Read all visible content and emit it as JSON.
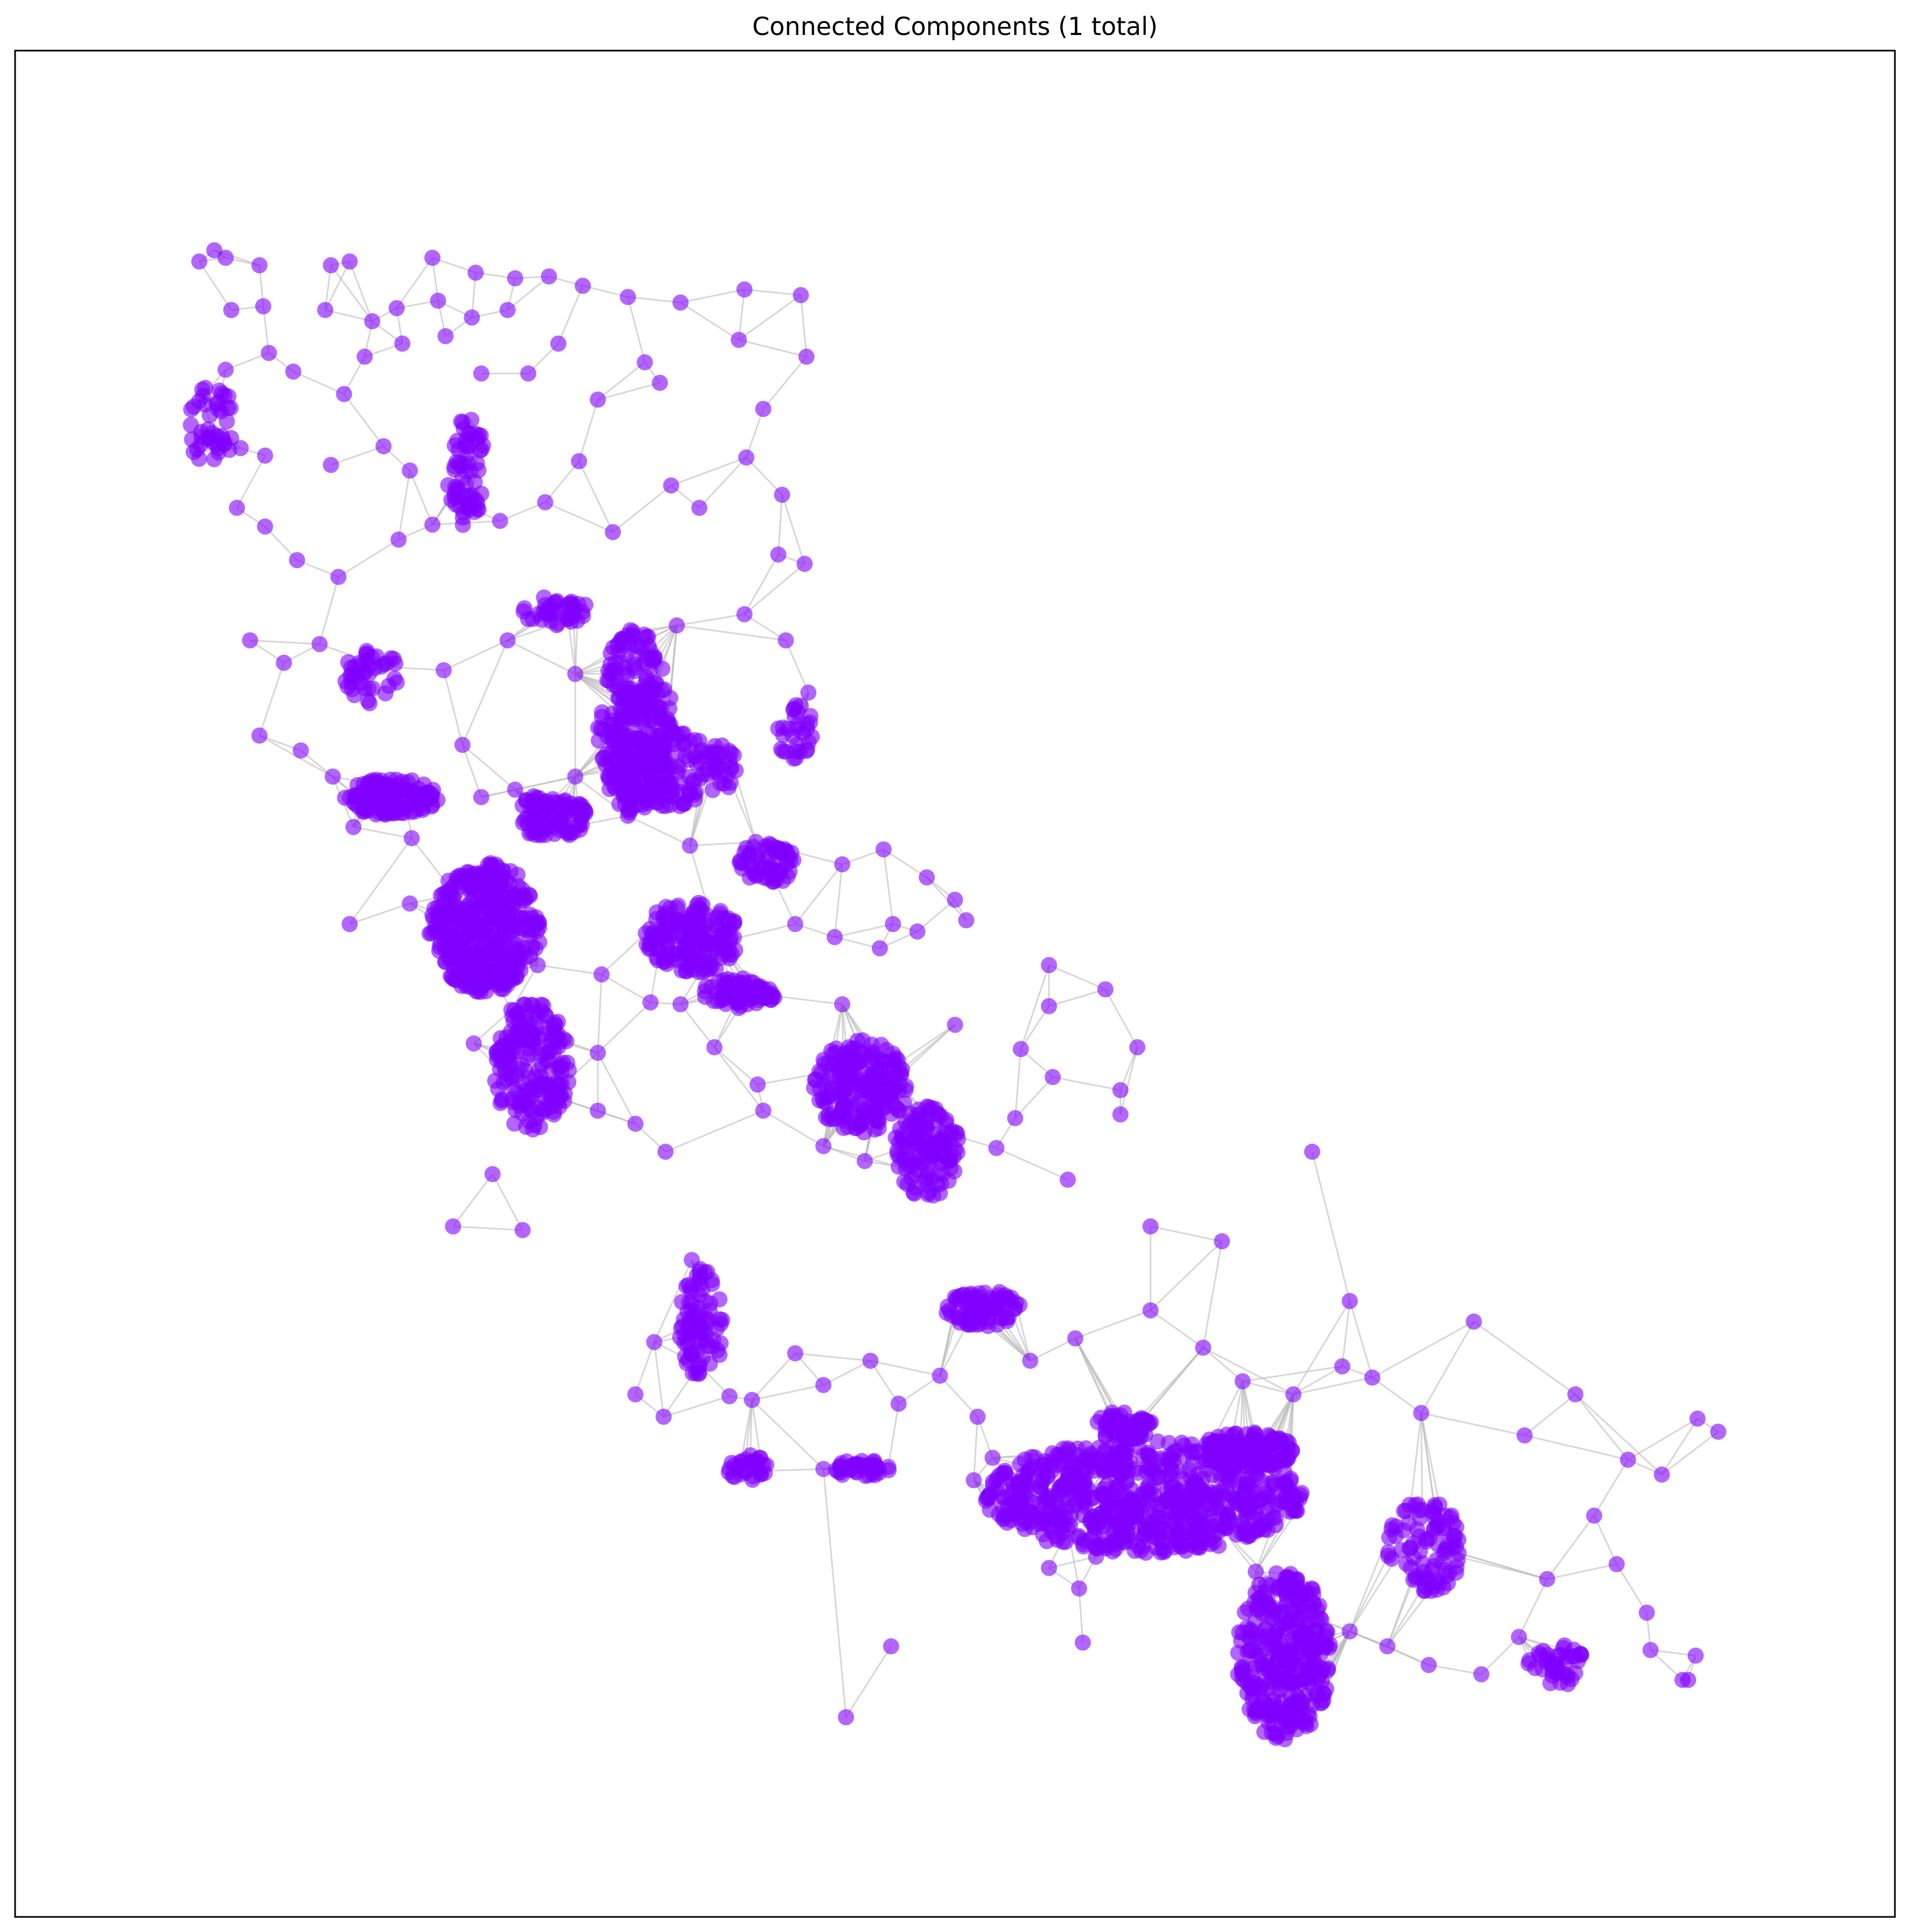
{
  "chart_data": {
    "type": "network",
    "title": "Connected Components (1 total)",
    "component_count": 1,
    "node_color": "#8000ff",
    "node_alpha": 0.6,
    "edge_color": "#bbbbbb",
    "axes_visible": false,
    "grid": false,
    "legend": "none",
    "xlim": [
      0,
      1
    ],
    "ylim": [
      0,
      1
    ],
    "nodes": [
      [
        0.098,
        0.887
      ],
      [
        0.106,
        0.893
      ],
      [
        0.112,
        0.889
      ],
      [
        0.13,
        0.885
      ],
      [
        0.168,
        0.885
      ],
      [
        0.178,
        0.887
      ],
      [
        0.222,
        0.889
      ],
      [
        0.245,
        0.881
      ],
      [
        0.266,
        0.878
      ],
      [
        0.284,
        0.879
      ],
      [
        0.302,
        0.874
      ],
      [
        0.326,
        0.868
      ],
      [
        0.354,
        0.865
      ],
      [
        0.388,
        0.872
      ],
      [
        0.418,
        0.869
      ],
      [
        0.115,
        0.861
      ],
      [
        0.132,
        0.863
      ],
      [
        0.165,
        0.861
      ],
      [
        0.19,
        0.855
      ],
      [
        0.203,
        0.862
      ],
      [
        0.225,
        0.866
      ],
      [
        0.243,
        0.857
      ],
      [
        0.262,
        0.861
      ],
      [
        0.289,
        0.843
      ],
      [
        0.335,
        0.833
      ],
      [
        0.385,
        0.845
      ],
      [
        0.421,
        0.836
      ],
      [
        0.112,
        0.829
      ],
      [
        0.135,
        0.838
      ],
      [
        0.148,
        0.828
      ],
      [
        0.175,
        0.816
      ],
      [
        0.186,
        0.836
      ],
      [
        0.206,
        0.843
      ],
      [
        0.229,
        0.847
      ],
      [
        0.248,
        0.827
      ],
      [
        0.273,
        0.827
      ],
      [
        0.31,
        0.813
      ],
      [
        0.343,
        0.822
      ],
      [
        0.398,
        0.808
      ],
      [
        0.1,
        0.815
      ],
      [
        0.108,
        0.808
      ],
      [
        0.105,
        0.795
      ],
      [
        0.095,
        0.785
      ],
      [
        0.12,
        0.787
      ],
      [
        0.133,
        0.783
      ],
      [
        0.168,
        0.778
      ],
      [
        0.196,
        0.788
      ],
      [
        0.21,
        0.775
      ],
      [
        0.246,
        0.792
      ],
      [
        0.3,
        0.78
      ],
      [
        0.349,
        0.767
      ],
      [
        0.389,
        0.782
      ],
      [
        0.408,
        0.762
      ],
      [
        0.118,
        0.755
      ],
      [
        0.133,
        0.745
      ],
      [
        0.15,
        0.727
      ],
      [
        0.172,
        0.718
      ],
      [
        0.204,
        0.738
      ],
      [
        0.222,
        0.746
      ],
      [
        0.258,
        0.748
      ],
      [
        0.282,
        0.758
      ],
      [
        0.318,
        0.742
      ],
      [
        0.364,
        0.755
      ],
      [
        0.406,
        0.73
      ],
      [
        0.42,
        0.725
      ],
      [
        0.125,
        0.684
      ],
      [
        0.143,
        0.672
      ],
      [
        0.162,
        0.682
      ],
      [
        0.195,
        0.67
      ],
      [
        0.228,
        0.668
      ],
      [
        0.262,
        0.684
      ],
      [
        0.298,
        0.666
      ],
      [
        0.352,
        0.692
      ],
      [
        0.388,
        0.698
      ],
      [
        0.41,
        0.684
      ],
      [
        0.422,
        0.656
      ],
      [
        0.13,
        0.633
      ],
      [
        0.152,
        0.625
      ],
      [
        0.169,
        0.611
      ],
      [
        0.18,
        0.584
      ],
      [
        0.207,
        0.604
      ],
      [
        0.238,
        0.628
      ],
      [
        0.266,
        0.604
      ],
      [
        0.298,
        0.611
      ],
      [
        0.326,
        0.59
      ],
      [
        0.359,
        0.574
      ],
      [
        0.394,
        0.576
      ],
      [
        0.44,
        0.564
      ],
      [
        0.462,
        0.572
      ],
      [
        0.178,
        0.532
      ],
      [
        0.21,
        0.543
      ],
      [
        0.234,
        0.548
      ],
      [
        0.25,
        0.512
      ],
      [
        0.278,
        0.51
      ],
      [
        0.312,
        0.505
      ],
      [
        0.338,
        0.49
      ],
      [
        0.374,
        0.522
      ],
      [
        0.415,
        0.532
      ],
      [
        0.436,
        0.525
      ],
      [
        0.46,
        0.519
      ],
      [
        0.48,
        0.528
      ],
      [
        0.506,
        0.534
      ],
      [
        0.485,
        0.557
      ],
      [
        0.5,
        0.545
      ],
      [
        0.55,
        0.51
      ],
      [
        0.58,
        0.497
      ],
      [
        0.597,
        0.466
      ],
      [
        0.588,
        0.443
      ],
      [
        0.55,
        0.488
      ],
      [
        0.535,
        0.465
      ],
      [
        0.532,
        0.428
      ],
      [
        0.552,
        0.45
      ],
      [
        0.588,
        0.43
      ],
      [
        0.285,
        0.44
      ],
      [
        0.31,
        0.432
      ],
      [
        0.33,
        0.425
      ],
      [
        0.346,
        0.41
      ],
      [
        0.398,
        0.432
      ],
      [
        0.43,
        0.413
      ],
      [
        0.452,
        0.405
      ],
      [
        0.47,
        0.402
      ],
      [
        0.495,
        0.42
      ],
      [
        0.522,
        0.412
      ],
      [
        0.56,
        0.395
      ],
      [
        0.604,
        0.37
      ],
      [
        0.642,
        0.362
      ],
      [
        0.69,
        0.41
      ],
      [
        0.71,
        0.33
      ],
      [
        0.776,
        0.319
      ],
      [
        0.83,
        0.28
      ],
      [
        0.803,
        0.258
      ],
      [
        0.858,
        0.245
      ],
      [
        0.876,
        0.237
      ],
      [
        0.895,
        0.267
      ],
      [
        0.906,
        0.26
      ],
      [
        0.36,
        0.352
      ],
      [
        0.34,
        0.308
      ],
      [
        0.364,
        0.296
      ],
      [
        0.38,
        0.279
      ],
      [
        0.415,
        0.302
      ],
      [
        0.43,
        0.285
      ],
      [
        0.455,
        0.298
      ],
      [
        0.47,
        0.275
      ],
      [
        0.492,
        0.29
      ],
      [
        0.512,
        0.268
      ],
      [
        0.54,
        0.298
      ],
      [
        0.564,
        0.31
      ],
      [
        0.604,
        0.325
      ],
      [
        0.632,
        0.305
      ],
      [
        0.653,
        0.287
      ],
      [
        0.68,
        0.28
      ],
      [
        0.706,
        0.295
      ],
      [
        0.722,
        0.289
      ],
      [
        0.748,
        0.27
      ],
      [
        0.51,
        0.234
      ],
      [
        0.52,
        0.246
      ],
      [
        0.56,
        0.208
      ],
      [
        0.575,
        0.193
      ],
      [
        0.61,
        0.201
      ],
      [
        0.64,
        0.21
      ],
      [
        0.66,
        0.185
      ],
      [
        0.685,
        0.163
      ],
      [
        0.71,
        0.153
      ],
      [
        0.73,
        0.145
      ],
      [
        0.752,
        0.135
      ],
      [
        0.78,
        0.13
      ],
      [
        0.8,
        0.15
      ],
      [
        0.815,
        0.181
      ],
      [
        0.84,
        0.215
      ],
      [
        0.852,
        0.189
      ],
      [
        0.87,
        0.143
      ],
      [
        0.89,
        0.127
      ],
      [
        0.887,
        0.127
      ],
      [
        0.894,
        0.14
      ],
      [
        0.868,
        0.163
      ],
      [
        0.55,
        0.187
      ],
      [
        0.566,
        0.176
      ],
      [
        0.568,
        0.147
      ],
      [
        0.466,
        0.145
      ],
      [
        0.442,
        0.107
      ],
      [
        0.43,
        0.24
      ],
      [
        0.392,
        0.277
      ],
      [
        0.33,
        0.28
      ],
      [
        0.345,
        0.268
      ],
      [
        0.27,
        0.368
      ],
      [
        0.233,
        0.37
      ],
      [
        0.254,
        0.398
      ],
      [
        0.5,
        0.478
      ],
      [
        0.467,
        0.532
      ],
      [
        0.44,
        0.489
      ],
      [
        0.395,
        0.446
      ],
      [
        0.372,
        0.466
      ],
      [
        0.354,
        0.489
      ],
      [
        0.31,
        0.463
      ],
      [
        0.264,
        0.486
      ],
      [
        0.244,
        0.468
      ],
      [
        0.242,
        0.533
      ],
      [
        0.211,
        0.578
      ],
      [
        0.248,
        0.6
      ]
    ],
    "dense_clusters": [
      {
        "cx": 0.24,
        "cy": 0.775,
        "rx": 0.01,
        "ry": 0.03,
        "n": 60
      },
      {
        "cx": 0.105,
        "cy": 0.8,
        "rx": 0.012,
        "ry": 0.025,
        "n": 40
      },
      {
        "cx": 0.285,
        "cy": 0.7,
        "rx": 0.02,
        "ry": 0.008,
        "n": 40
      },
      {
        "cx": 0.33,
        "cy": 0.64,
        "rx": 0.02,
        "ry": 0.05,
        "n": 260
      },
      {
        "cx": 0.35,
        "cy": 0.615,
        "rx": 0.035,
        "ry": 0.02,
        "n": 150
      },
      {
        "cx": 0.2,
        "cy": 0.6,
        "rx": 0.025,
        "ry": 0.01,
        "n": 120
      },
      {
        "cx": 0.25,
        "cy": 0.53,
        "rx": 0.03,
        "ry": 0.035,
        "n": 380
      },
      {
        "cx": 0.275,
        "cy": 0.455,
        "rx": 0.02,
        "ry": 0.035,
        "n": 190
      },
      {
        "cx": 0.285,
        "cy": 0.59,
        "rx": 0.02,
        "ry": 0.012,
        "n": 90
      },
      {
        "cx": 0.36,
        "cy": 0.525,
        "rx": 0.025,
        "ry": 0.02,
        "n": 160
      },
      {
        "cx": 0.385,
        "cy": 0.495,
        "rx": 0.02,
        "ry": 0.008,
        "n": 70
      },
      {
        "cx": 0.45,
        "cy": 0.445,
        "rx": 0.025,
        "ry": 0.025,
        "n": 200
      },
      {
        "cx": 0.485,
        "cy": 0.41,
        "rx": 0.018,
        "ry": 0.025,
        "n": 120
      },
      {
        "cx": 0.4,
        "cy": 0.565,
        "rx": 0.015,
        "ry": 0.012,
        "n": 60
      },
      {
        "cx": 0.365,
        "cy": 0.318,
        "rx": 0.012,
        "ry": 0.03,
        "n": 80
      },
      {
        "cx": 0.515,
        "cy": 0.326,
        "rx": 0.02,
        "ry": 0.01,
        "n": 80
      },
      {
        "cx": 0.6,
        "cy": 0.225,
        "rx": 0.085,
        "ry": 0.03,
        "n": 700
      },
      {
        "cx": 0.675,
        "cy": 0.14,
        "rx": 0.025,
        "ry": 0.045,
        "n": 320
      },
      {
        "cx": 0.655,
        "cy": 0.25,
        "rx": 0.025,
        "ry": 0.01,
        "n": 120
      },
      {
        "cx": 0.75,
        "cy": 0.198,
        "rx": 0.02,
        "ry": 0.025,
        "n": 90
      },
      {
        "cx": 0.59,
        "cy": 0.263,
        "rx": 0.015,
        "ry": 0.008,
        "n": 60
      },
      {
        "cx": 0.45,
        "cy": 0.24,
        "rx": 0.015,
        "ry": 0.005,
        "n": 40
      },
      {
        "cx": 0.82,
        "cy": 0.135,
        "rx": 0.015,
        "ry": 0.012,
        "n": 40
      },
      {
        "cx": 0.415,
        "cy": 0.635,
        "rx": 0.01,
        "ry": 0.015,
        "n": 30
      },
      {
        "cx": 0.19,
        "cy": 0.665,
        "rx": 0.015,
        "ry": 0.015,
        "n": 40
      },
      {
        "cx": 0.39,
        "cy": 0.24,
        "rx": 0.012,
        "ry": 0.008,
        "n": 30
      }
    ]
  }
}
